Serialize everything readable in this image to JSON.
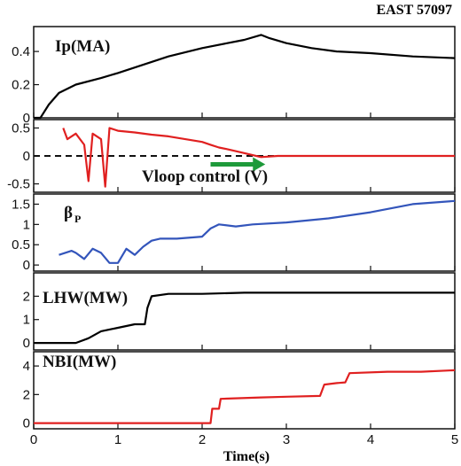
{
  "figure_label": "EAST 57097",
  "xlabel": "Time(s)",
  "xticks": [
    "0",
    "1",
    "2",
    "3",
    "4",
    "5"
  ],
  "chart_data": [
    {
      "type": "line",
      "label": "Ip(MA)",
      "color": "#000000",
      "xlim": [
        0,
        5
      ],
      "ylim": [
        0,
        0.55
      ],
      "yticks": [
        0,
        0.2,
        0.4
      ],
      "ytick_labels": [
        "0",
        "0.2",
        "0.4"
      ],
      "x": [
        0,
        0.08,
        0.18,
        0.3,
        0.5,
        0.8,
        1.0,
        1.3,
        1.6,
        2.0,
        2.3,
        2.5,
        2.7,
        2.8,
        3.0,
        3.3,
        3.6,
        4.0,
        4.5,
        5.0
      ],
      "y": [
        0,
        0.0,
        0.08,
        0.15,
        0.2,
        0.24,
        0.27,
        0.32,
        0.37,
        0.42,
        0.45,
        0.47,
        0.5,
        0.48,
        0.45,
        0.42,
        0.4,
        0.39,
        0.37,
        0.36
      ]
    },
    {
      "type": "line",
      "label": "Vloop control (V)",
      "color": "#e02020",
      "reference_line": 0,
      "xlim": [
        0,
        5
      ],
      "ylim": [
        -0.65,
        0.65
      ],
      "yticks": [
        -0.5,
        0,
        0.5
      ],
      "ytick_labels": [
        "-0.5",
        "0",
        "0.5"
      ],
      "x": [
        0.35,
        0.4,
        0.5,
        0.6,
        0.65,
        0.7,
        0.8,
        0.85,
        0.9,
        1.0,
        1.2,
        1.4,
        1.6,
        1.8,
        2.0,
        2.1,
        2.2,
        2.3,
        2.5,
        2.7,
        2.9,
        3.2,
        3.6,
        4.0,
        4.5,
        5.0
      ],
      "y": [
        0.5,
        0.3,
        0.4,
        0.2,
        -0.45,
        0.4,
        0.3,
        -0.55,
        0.5,
        0.45,
        0.42,
        0.38,
        0.35,
        0.3,
        0.25,
        0.2,
        0.15,
        0.12,
        0.05,
        -0.02,
        0.0,
        0.0,
        0.0,
        0.0,
        0.0,
        0.0
      ],
      "annotation": "Vloop control (V)",
      "arrow": {
        "from_x": 2.1,
        "to_x": 2.75,
        "y": -0.15,
        "color": "#1e9a3a"
      }
    },
    {
      "type": "line",
      "label": "β",
      "label_sub": "P",
      "color": "#3355bb",
      "xlim": [
        0,
        5
      ],
      "ylim": [
        -0.15,
        1.75
      ],
      "yticks": [
        0,
        0.5,
        1,
        1.5
      ],
      "ytick_labels": [
        "0",
        "0.5",
        "1",
        "1.5"
      ],
      "x": [
        0.3,
        0.45,
        0.5,
        0.6,
        0.7,
        0.8,
        0.9,
        1.0,
        1.1,
        1.2,
        1.3,
        1.4,
        1.5,
        1.7,
        2.0,
        2.1,
        2.2,
        2.4,
        2.6,
        3.0,
        3.5,
        4.0,
        4.5,
        5.0
      ],
      "y": [
        0.25,
        0.35,
        0.3,
        0.15,
        0.4,
        0.3,
        0.05,
        0.05,
        0.4,
        0.25,
        0.45,
        0.6,
        0.65,
        0.65,
        0.7,
        0.9,
        1.0,
        0.95,
        1.0,
        1.05,
        1.15,
        1.3,
        1.5,
        1.58
      ]
    },
    {
      "type": "line",
      "label": "LHW(MW)",
      "color": "#000000",
      "xlim": [
        0,
        5
      ],
      "ylim": [
        -0.3,
        3.0
      ],
      "yticks": [
        0,
        1,
        2
      ],
      "ytick_labels": [
        "0",
        "1",
        "2"
      ],
      "x": [
        0,
        0.5,
        0.65,
        0.8,
        1.0,
        1.2,
        1.32,
        1.35,
        1.4,
        1.6,
        2.0,
        2.5,
        3.0,
        4.0,
        5.0
      ],
      "y": [
        0,
        0.0,
        0.2,
        0.5,
        0.65,
        0.8,
        0.8,
        1.5,
        2.0,
        2.1,
        2.1,
        2.15,
        2.15,
        2.15,
        2.15
      ]
    },
    {
      "type": "line",
      "label": "NBI(MW)",
      "color": "#e02020",
      "xlim": [
        0,
        5
      ],
      "ylim": [
        -0.4,
        5.0
      ],
      "yticks": [
        0,
        2,
        4
      ],
      "ytick_labels": [
        "0",
        "2",
        "4"
      ],
      "x": [
        0,
        2.1,
        2.12,
        2.2,
        2.22,
        2.7,
        3.0,
        3.4,
        3.45,
        3.6,
        3.7,
        3.75,
        4.2,
        4.6,
        5.0
      ],
      "y": [
        0,
        0,
        1.0,
        1.0,
        1.7,
        1.8,
        1.85,
        1.9,
        2.7,
        2.8,
        2.85,
        3.5,
        3.6,
        3.6,
        3.7
      ]
    }
  ]
}
